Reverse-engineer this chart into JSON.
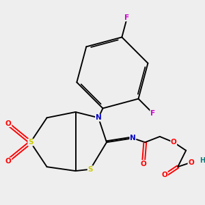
{
  "bg_color": "#eeeeee",
  "bond_color": "#000000",
  "S_color": "#cccc00",
  "N_color": "#0000cc",
  "O_color": "#ff0000",
  "F_color": "#cc00cc",
  "H_color": "#008080",
  "figsize": [
    3.0,
    3.0
  ],
  "dpi": 100,
  "xlim": [
    0,
    10
  ],
  "ylim": [
    0,
    10
  ],
  "lw": 1.4,
  "fs": 7.5
}
